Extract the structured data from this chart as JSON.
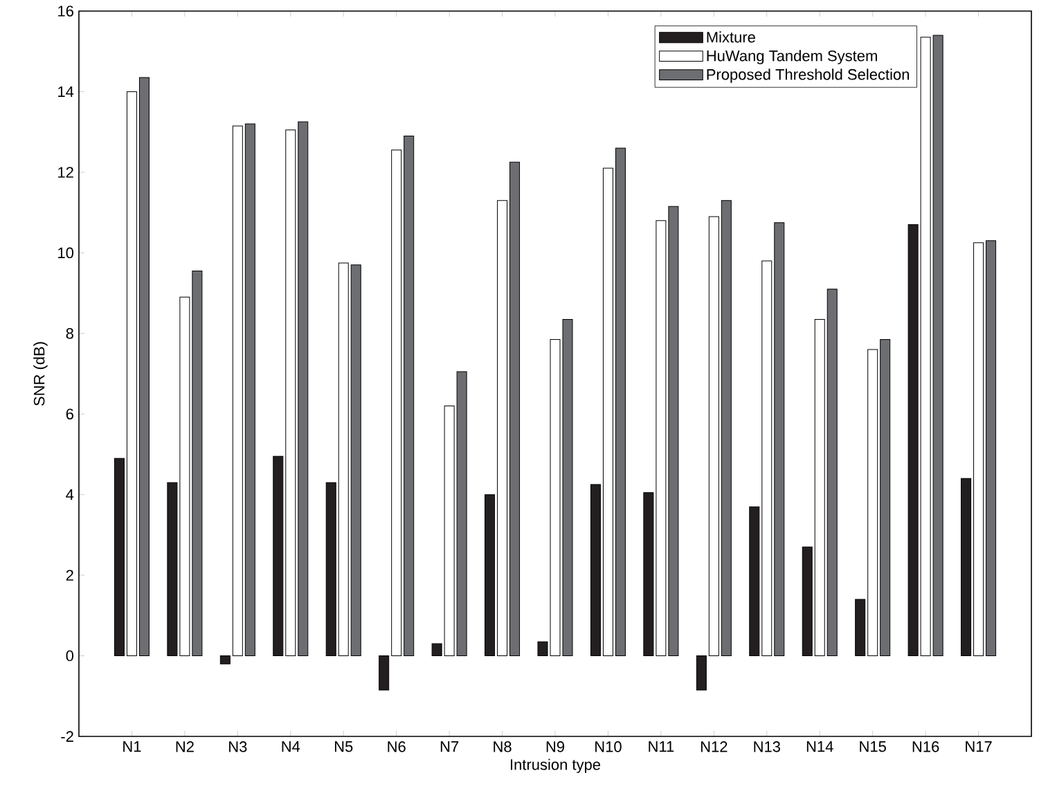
{
  "chart_data": {
    "type": "bar",
    "xlabel": "Intrusion type",
    "ylabel": "SNR (dB)",
    "categories": [
      "N1",
      "N2",
      "N3",
      "N4",
      "N5",
      "N6",
      "N7",
      "N8",
      "N9",
      "N10",
      "N11",
      "N12",
      "N13",
      "N14",
      "N15",
      "N16",
      "N17"
    ],
    "series": [
      {
        "name": "Mixture",
        "color": "#231f20",
        "values": [
          4.9,
          4.3,
          -0.2,
          4.95,
          4.3,
          -0.85,
          0.3,
          4.0,
          0.35,
          4.25,
          4.05,
          -0.85,
          3.7,
          2.7,
          1.4,
          10.7,
          4.4
        ]
      },
      {
        "name": "HuWang Tandem System",
        "color": "#ffffff",
        "values": [
          14.0,
          8.9,
          13.15,
          13.05,
          9.75,
          12.55,
          6.2,
          11.3,
          7.85,
          12.1,
          10.8,
          10.9,
          9.8,
          8.35,
          7.6,
          15.35,
          10.25
        ]
      },
      {
        "name": "Proposed Threshold Selection",
        "color": "#6d6e71",
        "values": [
          14.35,
          9.55,
          13.2,
          13.25,
          9.7,
          12.9,
          7.05,
          12.25,
          8.35,
          12.6,
          11.15,
          11.3,
          10.75,
          9.1,
          7.85,
          15.4,
          10.3
        ]
      }
    ],
    "ylim": [
      -2,
      16
    ],
    "yticks": [
      -2,
      0,
      2,
      4,
      6,
      8,
      10,
      12,
      14,
      16
    ],
    "grid": false,
    "legend": "top right"
  }
}
